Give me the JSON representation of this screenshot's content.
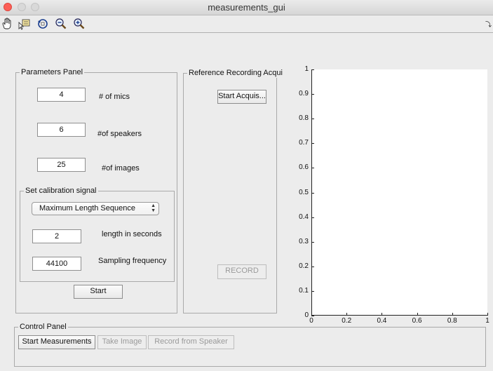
{
  "window": {
    "title": "measurements_gui"
  },
  "toolbar": {
    "icons": [
      "pan-icon",
      "data-cursor-icon",
      "rotate-icon",
      "zoom-out-icon",
      "zoom-in-icon"
    ]
  },
  "parameters_panel": {
    "title": "Parameters Panel",
    "mics": {
      "value": "4",
      "label": "# of mics"
    },
    "speakers": {
      "value": "6",
      "label": "#of speakers"
    },
    "images": {
      "value": "25",
      "label": "#of images"
    },
    "calibration": {
      "title": "Set calibration signal",
      "signal_type": "Maximum Length Sequence",
      "length": {
        "value": "2",
        "label": "length in seconds"
      },
      "sampling": {
        "value": "44100",
        "label": "Sampling frequency"
      }
    },
    "start_label": "Start"
  },
  "reference_panel": {
    "title": "Reference Recording Acqui",
    "start_acquis_label": "Start Acquis...",
    "record_label": "RECORD"
  },
  "axes": {
    "yticks": [
      "1",
      "0.9",
      "0.8",
      "0.7",
      "0.6",
      "0.5",
      "0.4",
      "0.3",
      "0.2",
      "0.1",
      "0"
    ],
    "xticks": [
      "0",
      "0.2",
      "0.4",
      "0.6",
      "0.8",
      "1"
    ]
  },
  "control_panel": {
    "title": "Control Panel",
    "start_measurements_label": "Start Measurements",
    "take_image_label": "Take Image",
    "record_speaker_label": "Record from Speaker"
  }
}
